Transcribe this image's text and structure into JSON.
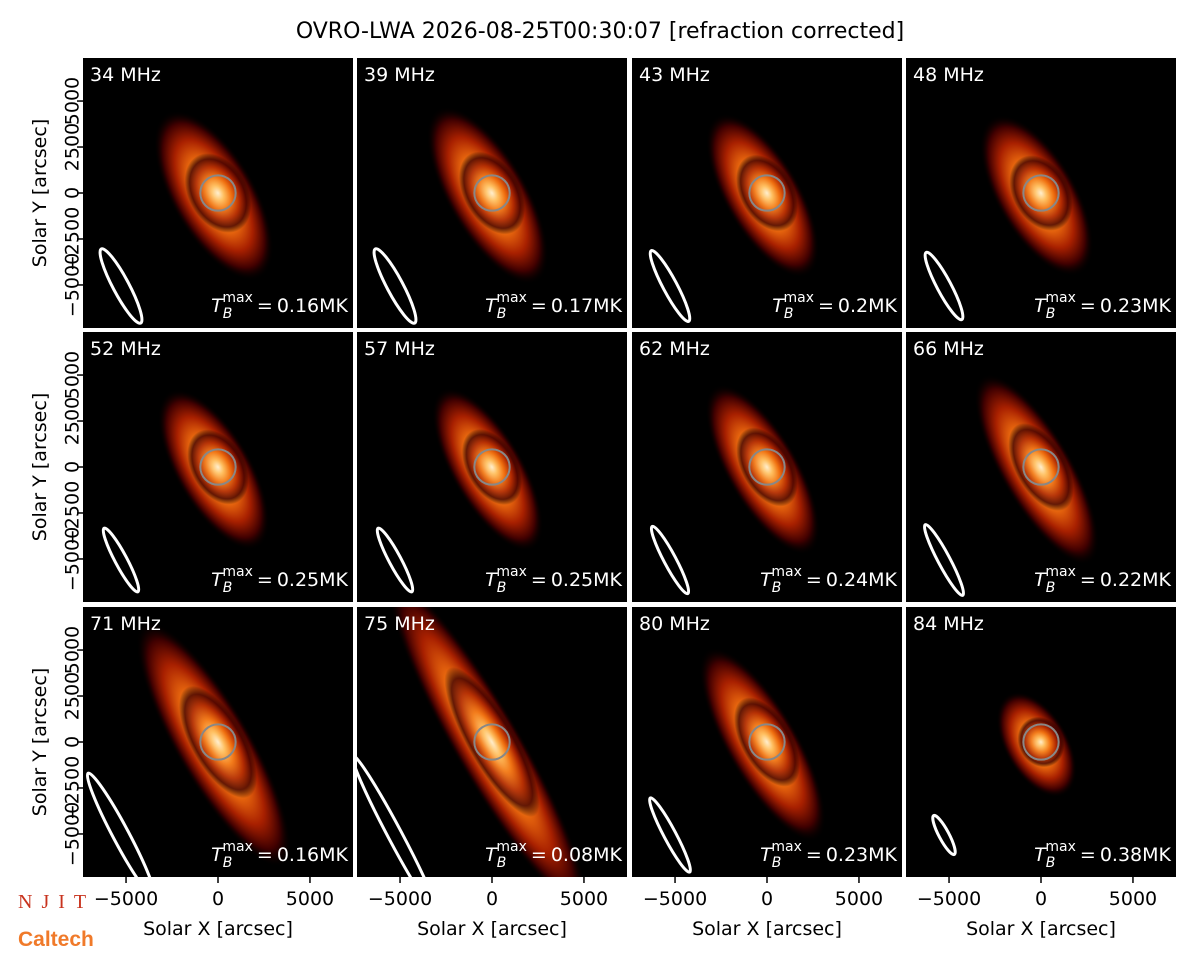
{
  "title": "OVRO-LWA 2026-08-25T00:30:07 [refraction corrected]",
  "tb_symbol": "T",
  "tb_sub": "B",
  "tb_sup": "max",
  "tb_equals": "=",
  "logos": [
    "NJIT",
    "Caltech"
  ],
  "chart_data": [
    {
      "type": "image",
      "title": "34 MHz",
      "annotation": "0.16MK",
      "xlim": [
        -7340,
        7340
      ],
      "ylim": [
        -7340,
        7340
      ],
      "ylabel": "Solar Y [arcsec]",
      "yticks": [
        {
          "value": -5000,
          "label": "−5000"
        },
        {
          "value": -2500,
          "label": "−2500"
        },
        0,
        2500,
        5000
      ]
    },
    {
      "type": "image",
      "title": "39 MHz",
      "annotation": "0.17MK",
      "xlim": [
        -7340,
        7340
      ],
      "ylim": [
        -7340,
        7340
      ]
    },
    {
      "type": "image",
      "title": "43 MHz",
      "annotation": "0.2MK",
      "xlim": [
        -7340,
        7340
      ],
      "ylim": [
        -7340,
        7340
      ]
    },
    {
      "type": "image",
      "title": "48 MHz",
      "annotation": "0.23MK",
      "xlim": [
        -7340,
        7340
      ],
      "ylim": [
        -7340,
        7340
      ]
    },
    {
      "type": "image",
      "title": "52 MHz",
      "annotation": "0.25MK",
      "xlim": [
        -7340,
        7340
      ],
      "ylim": [
        -7340,
        7340
      ],
      "ylabel": "Solar Y [arcsec]",
      "yticks": [
        {
          "value": -5000,
          "label": "−5000"
        },
        {
          "value": -2500,
          "label": "−2500"
        },
        0,
        2500,
        5000
      ]
    },
    {
      "type": "image",
      "title": "57 MHz",
      "annotation": "0.25MK",
      "xlim": [
        -7340,
        7340
      ],
      "ylim": [
        -7340,
        7340
      ]
    },
    {
      "type": "image",
      "title": "62 MHz",
      "annotation": "0.24MK",
      "xlim": [
        -7340,
        7340
      ],
      "ylim": [
        -7340,
        7340
      ]
    },
    {
      "type": "image",
      "title": "66 MHz",
      "annotation": "0.22MK",
      "xlim": [
        -7340,
        7340
      ],
      "ylim": [
        -7340,
        7340
      ]
    },
    {
      "type": "image",
      "title": "71 MHz",
      "annotation": "0.16MK",
      "xlim": [
        -7340,
        7340
      ],
      "ylim": [
        -7340,
        7340
      ],
      "ylabel": "Solar Y [arcsec]",
      "yticks": [
        {
          "value": -5000,
          "label": "−5000"
        },
        {
          "value": -2500,
          "label": "−2500"
        },
        0,
        2500,
        5000
      ],
      "xlabel": "Solar X [arcsec]",
      "xticks": [
        {
          "value": -5000,
          "label": "−5000"
        },
        0,
        5000
      ]
    },
    {
      "type": "image",
      "title": "75 MHz",
      "annotation": "0.08MK",
      "xlim": [
        -7340,
        7340
      ],
      "ylim": [
        -7340,
        7340
      ],
      "xlabel": "Solar X [arcsec]",
      "xticks": [
        {
          "value": -5000,
          "label": "−5000"
        },
        0,
        5000
      ]
    },
    {
      "type": "image",
      "title": "80 MHz",
      "annotation": "0.23MK",
      "xlim": [
        -7340,
        7340
      ],
      "ylim": [
        -7340,
        7340
      ],
      "xlabel": "Solar X [arcsec]",
      "xticks": [
        {
          "value": -5000,
          "label": "−5000"
        },
        0,
        5000
      ]
    },
    {
      "type": "image",
      "title": "84 MHz",
      "annotation": "0.38MK",
      "xlim": [
        -7340,
        7340
      ],
      "ylim": [
        -7340,
        7340
      ],
      "xlabel": "Solar X [arcsec]",
      "xticks": [
        {
          "value": -5000,
          "label": "−5000"
        },
        0,
        5000
      ]
    }
  ]
}
